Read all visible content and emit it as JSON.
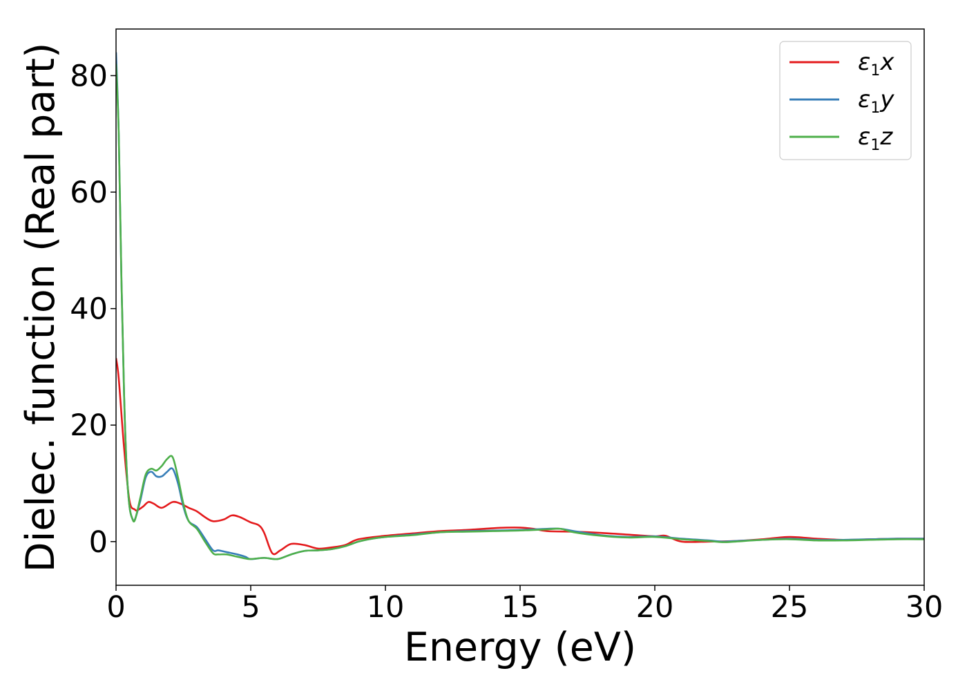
{
  "chart_data": {
    "type": "line",
    "xlabel": "Energy (eV)",
    "ylabel": "Dielec. function (Real part)",
    "xlim": [
      0,
      30
    ],
    "ylim": [
      -7.5,
      88
    ],
    "xticks": [
      0,
      5,
      10,
      15,
      20,
      25,
      30
    ],
    "yticks": [
      0,
      20,
      40,
      60,
      80
    ],
    "grid": false,
    "legend_position": "top-right",
    "series": [
      {
        "name": "ε1x",
        "legend_base": "ε",
        "legend_sub": "1",
        "legend_var": "x",
        "color": "#e41a1c",
        "x": [
          0,
          0.1,
          0.3,
          0.5,
          0.7,
          0.8,
          1.0,
          1.2,
          1.4,
          1.7,
          2.1,
          2.4,
          2.7,
          3.0,
          3.3,
          3.6,
          4.0,
          4.3,
          4.6,
          5.0,
          5.3,
          5.5,
          5.8,
          6.1,
          6.5,
          7.0,
          7.5,
          8.0,
          8.5,
          9.0,
          10,
          11,
          12,
          13,
          14,
          14.5,
          15,
          15.5,
          16,
          17,
          18,
          19,
          20,
          20.4,
          21,
          22,
          23,
          24,
          25,
          26,
          27,
          28,
          29,
          30
        ],
        "y": [
          31.5,
          28,
          16,
          7,
          5.5,
          5.4,
          6,
          6.8,
          6.5,
          5.8,
          6.8,
          6.5,
          5.8,
          5.2,
          4.2,
          3.5,
          3.8,
          4.5,
          4.2,
          3.3,
          2.8,
          1.5,
          -2,
          -1.5,
          -0.4,
          -0.6,
          -1.2,
          -1,
          -0.6,
          0.4,
          1,
          1.4,
          1.8,
          2,
          2.3,
          2.4,
          2.4,
          2.2,
          1.8,
          1.7,
          1.5,
          1.2,
          0.9,
          1,
          0,
          0,
          0.1,
          0.4,
          0.8,
          0.5,
          0.3,
          0.4,
          0.5,
          0.5
        ]
      },
      {
        "name": "ε1y",
        "legend_base": "ε",
        "legend_sub": "1",
        "legend_var": "y",
        "color": "#377eb8",
        "x": [
          0,
          0.1,
          0.2,
          0.3,
          0.4,
          0.5,
          0.6,
          0.7,
          0.9,
          1.1,
          1.3,
          1.5,
          1.7,
          1.9,
          2.1,
          2.3,
          2.5,
          2.7,
          3.0,
          3.3,
          3.6,
          3.8,
          4.1,
          4.5,
          4.8,
          5.0,
          5.5,
          6.0,
          6.5,
          7.0,
          7.5,
          8.0,
          8.5,
          9.0,
          9.5,
          10,
          11,
          12,
          13,
          14,
          15,
          16,
          16.5,
          17,
          18,
          19,
          20,
          21,
          22,
          22.5,
          23,
          24,
          25,
          26,
          27,
          28,
          29,
          30
        ],
        "y": [
          84,
          70,
          45,
          25,
          12,
          6,
          4,
          3.8,
          7,
          11,
          12,
          11.2,
          11.2,
          12,
          12.5,
          10,
          6,
          3.5,
          2.5,
          0.5,
          -1.5,
          -1.5,
          -1.8,
          -2.2,
          -2.6,
          -3,
          -2.8,
          -3,
          -2.2,
          -1.6,
          -1.5,
          -1.3,
          -0.8,
          0,
          0.5,
          0.8,
          1.2,
          1.6,
          1.8,
          1.9,
          2,
          2.2,
          2.2,
          1.8,
          1.1,
          0.8,
          0.9,
          0.5,
          0.2,
          0,
          0.1,
          0.3,
          0.5,
          0.3,
          0.3,
          0.4,
          0.5,
          0.5
        ]
      },
      {
        "name": "ε1z",
        "legend_base": "ε",
        "legend_sub": "1",
        "legend_var": "z",
        "color": "#4daf4a",
        "x": [
          0,
          0.1,
          0.2,
          0.3,
          0.4,
          0.5,
          0.6,
          0.7,
          0.9,
          1.1,
          1.3,
          1.5,
          1.7,
          1.9,
          2.1,
          2.3,
          2.5,
          2.7,
          3.0,
          3.3,
          3.6,
          3.8,
          4.1,
          4.5,
          4.8,
          5.0,
          5.5,
          6.0,
          6.5,
          7.0,
          7.5,
          8.0,
          8.5,
          9.0,
          9.5,
          10,
          11,
          12,
          13,
          14,
          15,
          16,
          16.5,
          17,
          18,
          19,
          20,
          21,
          22,
          22.5,
          23,
          24,
          25,
          26,
          27,
          28,
          29,
          30
        ],
        "y": [
          82,
          70,
          45,
          25,
          12,
          6,
          4,
          3.7,
          7.5,
          11.5,
          12.5,
          12.2,
          13,
          14.2,
          14.5,
          11,
          6.5,
          3.5,
          2.2,
          0,
          -2,
          -2.2,
          -2.2,
          -2.6,
          -2.9,
          -3,
          -2.8,
          -3,
          -2.2,
          -1.6,
          -1.5,
          -1.3,
          -0.8,
          0,
          0.5,
          0.8,
          1.1,
          1.6,
          1.7,
          1.8,
          1.9,
          2.1,
          2.2,
          1.6,
          1,
          0.7,
          0.8,
          0.4,
          0.1,
          -0.1,
          0,
          0.3,
          0.4,
          0.2,
          0.2,
          0.3,
          0.4,
          0.4
        ]
      }
    ]
  }
}
